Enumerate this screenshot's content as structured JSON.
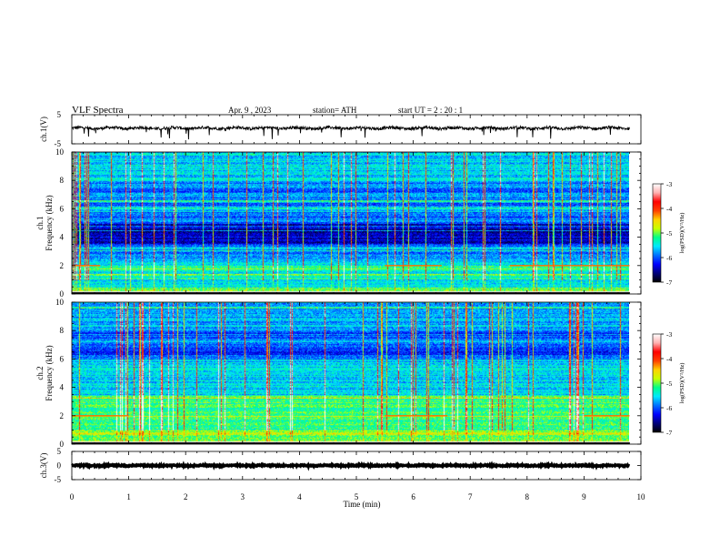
{
  "header": {
    "title": "VLF  Spectra",
    "date": "Apr. 9  , 2023",
    "station": "station= ATH",
    "start_ut": "start  UT  =   2  : 20 : 1"
  },
  "chart_data": [
    {
      "type": "line",
      "name": "ch1-waveform",
      "ylabel": "ch.1(V)",
      "ylim": [
        -5,
        5
      ],
      "y_ticks": [
        "5",
        "-5"
      ],
      "baseline": 0.4,
      "noise_amplitude": 0.5,
      "x_range": [
        0,
        9.8
      ]
    },
    {
      "type": "heatmap",
      "name": "ch1-spectrogram",
      "ylabel": "ch.1\nFrequency  (kHz)",
      "ylabel_lines": [
        "ch.1",
        "Frequency  (kHz)"
      ],
      "ylim": [
        0,
        10
      ],
      "y_ticks": [
        "0",
        "2",
        "4",
        "6",
        "8",
        "10"
      ],
      "x_range": [
        0,
        9.8
      ],
      "colorbar": {
        "label": "log(PSD)(V²/Hz)",
        "range": [
          -7,
          -3
        ],
        "ticks": [
          "-3",
          "-4",
          "-5",
          "-6",
          "-7"
        ]
      },
      "features": {
        "dark_band_khz": [
          3.5,
          5.0
        ],
        "bright_band_khz": [
          0.5,
          2.2
        ],
        "line_2khz_segments_min": [
          [
            0,
            0.5
          ],
          [
            5.5,
            6.5
          ],
          [
            7.7,
            9.8
          ]
        ]
      }
    },
    {
      "type": "heatmap",
      "name": "ch2-spectrogram",
      "ylabel": "ch.2\nFrequency  (kHz)",
      "ylabel_lines": [
        "ch.2",
        "Frequency  (kHz)"
      ],
      "ylim": [
        0,
        10
      ],
      "y_ticks": [
        "0",
        "2",
        "4",
        "6",
        "8",
        "10"
      ],
      "x_range": [
        0,
        9.8
      ],
      "colorbar": {
        "label": "log(PSD)(V²/Hz)",
        "range": [
          -7,
          -3
        ],
        "ticks": [
          "-3",
          "-4",
          "-5",
          "-6",
          "-7"
        ]
      },
      "features": {
        "dark_band_khz": [
          6.0,
          8.0
        ],
        "bright_band_khz": [
          1.0,
          3.5
        ],
        "line_2khz_segments_min": [
          [
            0,
            1.0
          ],
          [
            5.5,
            6.6
          ],
          [
            9.0,
            9.8
          ]
        ]
      }
    },
    {
      "type": "line",
      "name": "ch3-waveform",
      "ylabel": "ch.3(V)",
      "ylim": [
        -5,
        5
      ],
      "y_ticks": [
        "5",
        "0",
        "-5"
      ],
      "baseline": 0.0,
      "noise_amplitude": 0.2,
      "x_range": [
        0,
        9.8
      ]
    }
  ],
  "x_axis": {
    "label": "Time  (min)",
    "range": [
      0,
      10
    ],
    "ticks": [
      "0",
      "1",
      "2",
      "3",
      "4",
      "5",
      "6",
      "7",
      "8",
      "9",
      "10"
    ]
  },
  "colors": {
    "colormap": [
      "#000000",
      "#00007a",
      "#0000ff",
      "#0070ff",
      "#00e8ff",
      "#00ff88",
      "#c8ff00",
      "#ffd200",
      "#ff4000",
      "#ff0000",
      "#ffb0b0",
      "#ffffff"
    ]
  }
}
